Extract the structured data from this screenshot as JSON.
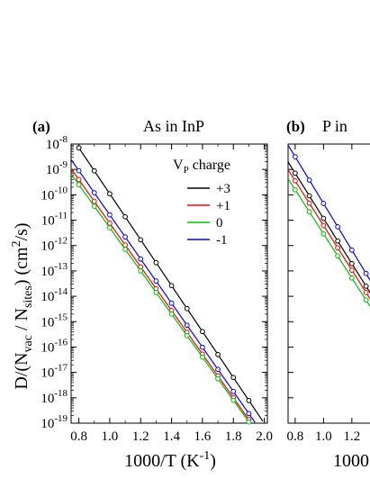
{
  "colors": {
    "black": "#000000",
    "red": "#ff0000",
    "green": "#00c000",
    "blue": "#0000ff"
  },
  "ylabel": {
    "main": "D/(N",
    "sub1": "vac",
    "mid": " / N",
    "sub2": "sites",
    "unit": ") (cm",
    "sup": "2",
    "end": "/s)"
  },
  "chart_data": [
    {
      "type": "line",
      "panel_label": "(a)",
      "title": "As in InP",
      "xlabel": {
        "main": "1000/T (K",
        "sup": "-1",
        "end": ")"
      },
      "xlim": [
        0.75,
        2.02
      ],
      "ylim_exp": [
        -19,
        -8
      ],
      "yscale": "log",
      "xticks": [
        "0.8",
        "1.0",
        "1.2",
        "1.4",
        "1.6",
        "1.8",
        "2.0"
      ],
      "ytick_exps": [
        "-8",
        "-9",
        "-10",
        "-11",
        "-12",
        "-13",
        "-14",
        "-15",
        "-16",
        "-17",
        "-18",
        "-19"
      ],
      "legend": {
        "title_main": "V",
        "title_sub": "P",
        "title_end": " charge",
        "position": "top-right"
      },
      "series": [
        {
          "name": "+3",
          "color": "#000000",
          "log10_D_at_x0_8": -8.15,
          "log10_D_per_unit_x": -9.05
        },
        {
          "name": "+1",
          "color": "#ff0000",
          "log10_D_at_x0_8": -9.4,
          "log10_D_per_unit_x": -8.6
        },
        {
          "name": "0",
          "color": "#00c000",
          "log10_D_at_x0_8": -9.6,
          "log10_D_per_unit_x": -8.5
        },
        {
          "name": "-1",
          "color": "#0000ff",
          "log10_D_at_x0_8": -9.05,
          "log10_D_per_unit_x": -8.7
        }
      ]
    },
    {
      "type": "line",
      "panel_label": "(b)",
      "title": "P in",
      "xlabel": {
        "main": "1000"
      },
      "xticks": [
        "0.8",
        "1.0",
        "1.2"
      ],
      "ytick_exps": [],
      "series": [
        {
          "name": "+3",
          "color": "#000000",
          "log10_D_at_x0_8": -9.15,
          "log10_D_per_unit_x": -8.9
        },
        {
          "name": "+1",
          "color": "#ff0000",
          "log10_D_at_x0_8": -9.45,
          "log10_D_per_unit_x": -8.8
        },
        {
          "name": "0",
          "color": "#00c000",
          "log10_D_at_x0_8": -9.8,
          "log10_D_per_unit_x": -8.7
        },
        {
          "name": "-1",
          "color": "#0000ff",
          "log10_D_at_x0_8": -8.5,
          "log10_D_per_unit_x": -9.2
        }
      ]
    }
  ]
}
